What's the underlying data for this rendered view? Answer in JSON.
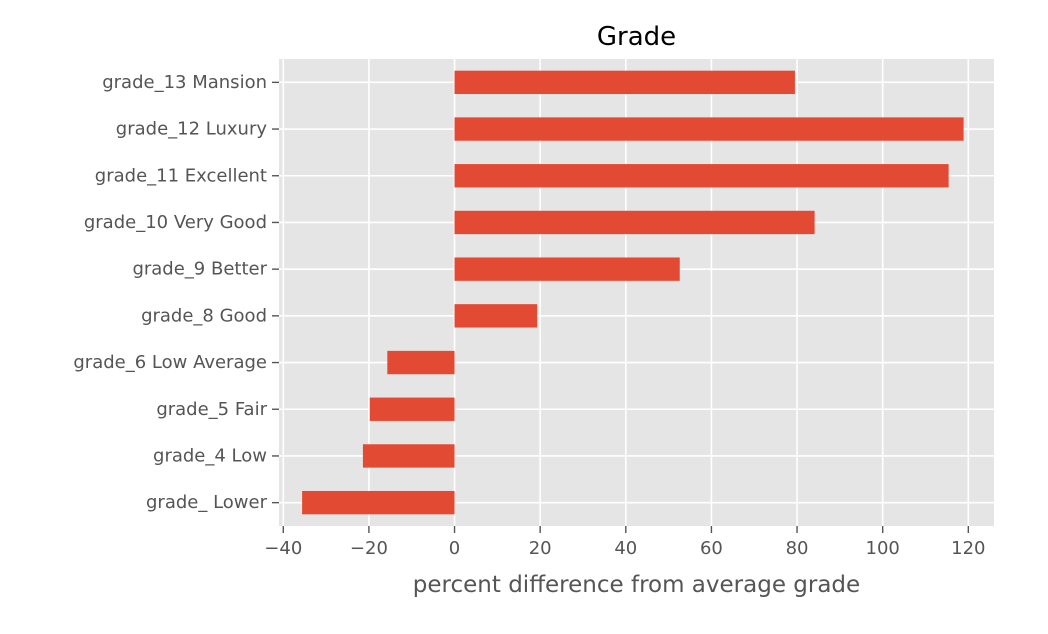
{
  "chart_data": {
    "type": "bar",
    "orientation": "horizontal",
    "title": "Grade",
    "xlabel": "percent difference from average grade",
    "ylabel": "",
    "categories": [
      "grade_13 Mansion",
      "grade_12 Luxury",
      "grade_11 Excellent",
      "grade_10 Very Good",
      "grade_9 Better",
      "grade_8 Good",
      "grade_6 Low Average",
      "grade_5 Fair",
      "grade_4 Low",
      "grade_ Lower"
    ],
    "values": [
      79.5,
      118.9,
      115.4,
      84.1,
      52.6,
      19.3,
      -15.7,
      -19.8,
      -21.4,
      -35.6
    ],
    "xlim": [
      -41,
      126
    ],
    "xticks": [
      -40,
      -20,
      0,
      20,
      40,
      60,
      80,
      100,
      120
    ],
    "xtick_labels": [
      "−40",
      "−20",
      "0",
      "20",
      "40",
      "60",
      "80",
      "100",
      "120"
    ],
    "grid": true,
    "legend": "none",
    "colors": {
      "bar": "#E24A33",
      "plot_background": "#E5E5E5",
      "grid": "#FFFFFF",
      "text": "#555555"
    }
  }
}
